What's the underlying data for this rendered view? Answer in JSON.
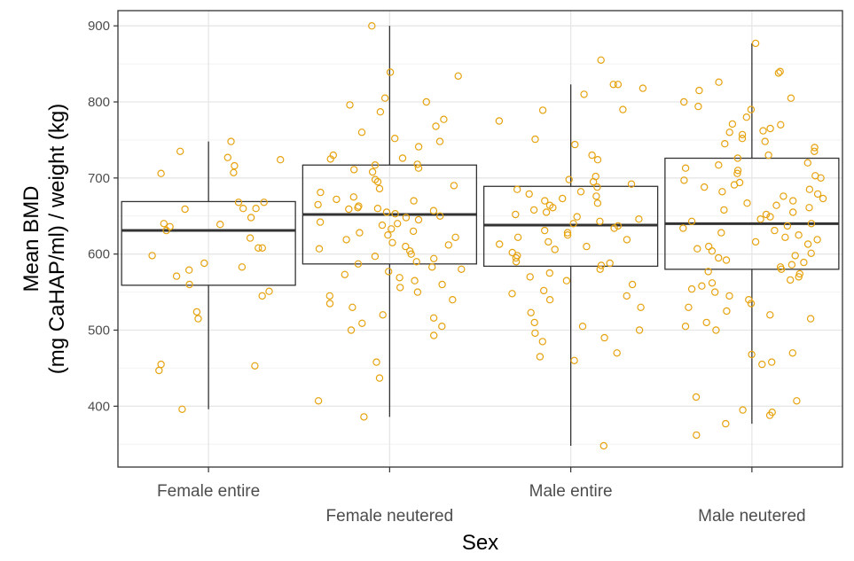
{
  "chart_data": {
    "type": "boxplot",
    "xlabel": "Sex",
    "ylabel_lines": [
      "Mean BMD",
      "(mg CaHAP/ml) / weight (kg)"
    ],
    "ylim": [
      320,
      920
    ],
    "yticks": [
      400,
      500,
      600,
      700,
      800,
      900
    ],
    "y_minor_ticks": [
      350,
      450,
      550,
      650,
      750,
      850
    ],
    "categories": [
      "Female entire",
      "Female neutered",
      "Male entire",
      "Male neutered"
    ],
    "grid": true,
    "style": "theme_bw",
    "point_color": "#e6a30f",
    "box_color": "#333333",
    "boxes": [
      {
        "category": "Female entire",
        "whisker_low": 396,
        "q1": 559,
        "median": 631,
        "q3": 669,
        "whisker_high": 748
      },
      {
        "category": "Female neutered",
        "whisker_low": 386,
        "q1": 587,
        "median": 652,
        "q3": 717,
        "whisker_high": 900
      },
      {
        "category": "Male entire",
        "whisker_low": 348,
        "q1": 584,
        "median": 638,
        "q3": 689,
        "whisker_high": 823
      },
      {
        "category": "Male neutered",
        "whisker_low": 377,
        "q1": 580,
        "median": 640,
        "q3": 726,
        "whisker_high": 877
      }
    ],
    "points": [
      {
        "category": "Female entire",
        "values": [
          748,
          735,
          727,
          724,
          716,
          707,
          706,
          668,
          668,
          660,
          660,
          659,
          648,
          640,
          639,
          636,
          631,
          621,
          608,
          608,
          598,
          588,
          583,
          579,
          571,
          560,
          551,
          545,
          524,
          515,
          453,
          455,
          447,
          396
        ]
      },
      {
        "category": "Female neutered",
        "values": [
          900,
          839,
          834,
          805,
          800,
          796,
          787,
          777,
          768,
          760,
          752,
          748,
          741,
          730,
          726,
          725,
          718,
          717,
          713,
          711,
          708,
          698,
          695,
          690,
          686,
          681,
          675,
          672,
          670,
          665,
          663,
          661,
          660,
          659,
          657,
          655,
          653,
          650,
          648,
          645,
          642,
          640,
          638,
          633,
          630,
          628,
          625,
          622,
          619,
          615,
          612,
          610,
          607,
          604,
          600,
          597,
          594,
          590,
          587,
          583,
          580,
          577,
          573,
          569,
          565,
          560,
          556,
          550,
          545,
          540,
          535,
          530,
          520,
          516,
          509,
          505,
          500,
          493,
          458,
          437,
          407,
          386
        ]
      },
      {
        "category": "Male entire",
        "values": [
          855,
          823,
          823,
          818,
          810,
          790,
          789,
          775,
          751,
          744,
          730,
          724,
          702,
          698,
          695,
          692,
          688,
          685,
          682,
          679,
          676,
          673,
          670,
          667,
          664,
          661,
          658,
          655,
          652,
          649,
          646,
          643,
          640,
          637,
          634,
          631,
          628,
          625,
          622,
          619,
          616,
          613,
          610,
          606,
          602,
          598,
          595,
          590,
          588,
          585,
          580,
          575,
          570,
          565,
          560,
          552,
          548,
          545,
          540,
          530,
          523,
          510,
          505,
          500,
          496,
          490,
          485,
          470,
          465,
          460,
          348
        ]
      },
      {
        "category": "Male neutered",
        "values": [
          877,
          840,
          838,
          826,
          815,
          805,
          800,
          794,
          790,
          780,
          771,
          770,
          765,
          762,
          760,
          757,
          752,
          748,
          745,
          740,
          735,
          730,
          726,
          720,
          717,
          713,
          710,
          706,
          703,
          700,
          697,
          694,
          691,
          688,
          685,
          682,
          679,
          676,
          673,
          670,
          667,
          664,
          661,
          658,
          655,
          652,
          649,
          646,
          643,
          640,
          637,
          634,
          631,
          628,
          625,
          622,
          619,
          616,
          613,
          610,
          607,
          604,
          601,
          598,
          595,
          592,
          589,
          586,
          583,
          580,
          577,
          574,
          570,
          566,
          562,
          558,
          554,
          550,
          545,
          540,
          535,
          530,
          525,
          520,
          515,
          510,
          505,
          500,
          470,
          468,
          458,
          455,
          412,
          407,
          395,
          392,
          388,
          377,
          362
        ]
      }
    ]
  }
}
